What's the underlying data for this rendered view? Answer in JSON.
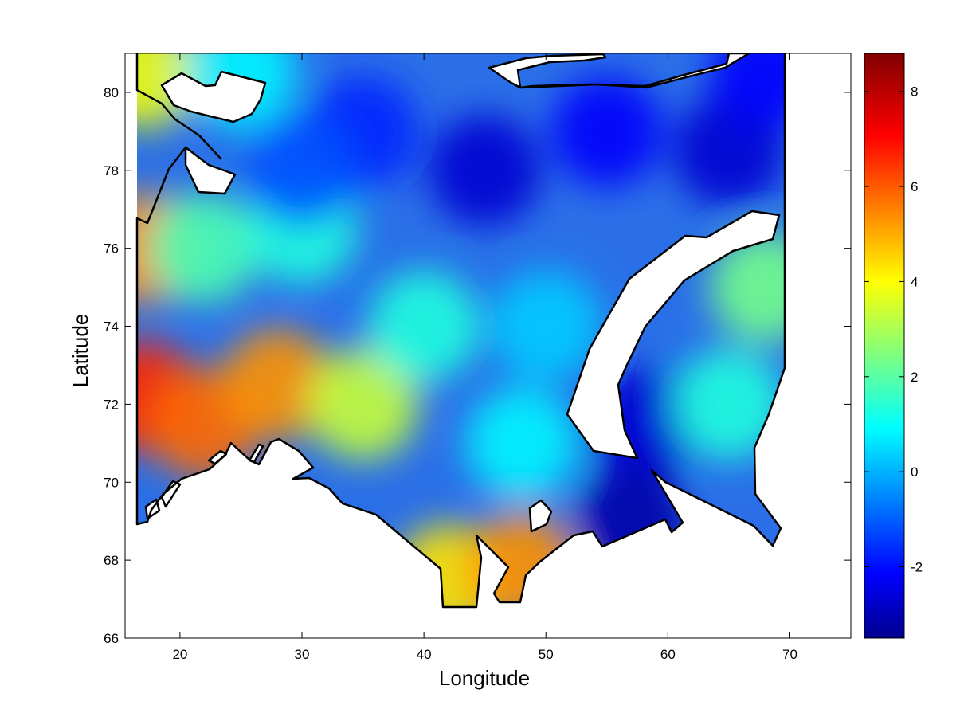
{
  "chart_data": {
    "type": "heatmap",
    "title": "",
    "xlabel": "Longitude",
    "ylabel": "Latitude",
    "xlim": [
      15.5,
      75
    ],
    "ylim": [
      66,
      81
    ],
    "xticks": [
      20,
      30,
      40,
      50,
      60,
      70
    ],
    "yticks": [
      66,
      68,
      70,
      72,
      74,
      76,
      78,
      80
    ],
    "colormap": "jet",
    "colorbar": {
      "clim": [
        -3.5,
        8.8
      ],
      "ticks": [
        -2,
        0,
        2,
        4,
        6,
        8
      ],
      "position": "right"
    },
    "grid": false,
    "field_samples": [
      {
        "lon": 17,
        "lat": 72.2,
        "value": 6.8
      },
      {
        "lon": 22,
        "lat": 71.5,
        "value": 6.0
      },
      {
        "lon": 28,
        "lat": 72.5,
        "value": 5.5
      },
      {
        "lon": 17,
        "lat": 76.0,
        "value": 5.5
      },
      {
        "lon": 17,
        "lat": 80.5,
        "value": 4.0
      },
      {
        "lon": 35,
        "lat": 72.0,
        "value": 3.5
      },
      {
        "lon": 42,
        "lat": 67.5,
        "value": 4.5
      },
      {
        "lon": 48,
        "lat": 67.8,
        "value": 5.5
      },
      {
        "lon": 22,
        "lat": 76.0,
        "value": 2.0
      },
      {
        "lon": 30,
        "lat": 76.5,
        "value": 1.5
      },
      {
        "lon": 40,
        "lat": 74.0,
        "value": 1.5
      },
      {
        "lon": 48,
        "lat": 71.0,
        "value": 1.0
      },
      {
        "lon": 50,
        "lat": 74.0,
        "value": 0.5
      },
      {
        "lon": 58,
        "lat": 71.5,
        "value": -2.5
      },
      {
        "lon": 57,
        "lat": 69.0,
        "value": -3.0
      },
      {
        "lon": 65,
        "lat": 72.0,
        "value": 1.5
      },
      {
        "lon": 68,
        "lat": 75.0,
        "value": 2.5
      },
      {
        "lon": 35,
        "lat": 79.0,
        "value": -1.5
      },
      {
        "lon": 45,
        "lat": 78.0,
        "value": -2.5
      },
      {
        "lon": 55,
        "lat": 79.0,
        "value": -2.0
      },
      {
        "lon": 65,
        "lat": 78.5,
        "value": -2.5
      },
      {
        "lon": 68,
        "lat": 80.5,
        "value": -2.0
      },
      {
        "lon": 25,
        "lat": 80.5,
        "value": 1.0
      },
      {
        "lon": 30,
        "lat": 78.0,
        "value": -1.0
      }
    ]
  }
}
